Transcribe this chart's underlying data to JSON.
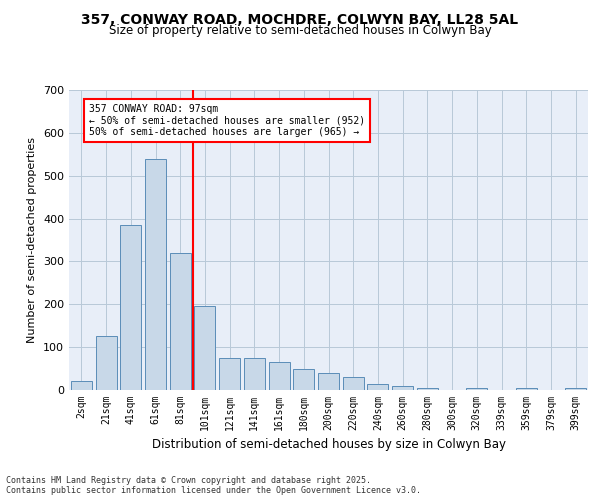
{
  "title1": "357, CONWAY ROAD, MOCHDRE, COLWYN BAY, LL28 5AL",
  "title2": "Size of property relative to semi-detached houses in Colwyn Bay",
  "xlabel": "Distribution of semi-detached houses by size in Colwyn Bay",
  "ylabel": "Number of semi-detached properties",
  "categories": [
    "2sqm",
    "21sqm",
    "41sqm",
    "61sqm",
    "81sqm",
    "101sqm",
    "121sqm",
    "141sqm",
    "161sqm",
    "180sqm",
    "200sqm",
    "220sqm",
    "240sqm",
    "260sqm",
    "280sqm",
    "300sqm",
    "320sqm",
    "339sqm",
    "359sqm",
    "379sqm",
    "399sqm"
  ],
  "values": [
    20,
    125,
    385,
    540,
    320,
    195,
    75,
    75,
    65,
    50,
    40,
    30,
    15,
    10,
    5,
    0,
    5,
    0,
    5,
    0,
    5
  ],
  "bar_color": "#c8d8e8",
  "bar_edge_color": "#5b8db8",
  "vline_x": 4.5,
  "vline_color": "red",
  "annotation_text": "357 CONWAY ROAD: 97sqm\n← 50% of semi-detached houses are smaller (952)\n50% of semi-detached houses are larger (965) →",
  "annotation_box_color": "white",
  "annotation_box_edge": "red",
  "ylim": [
    0,
    700
  ],
  "yticks": [
    0,
    100,
    200,
    300,
    400,
    500,
    600,
    700
  ],
  "footer": "Contains HM Land Registry data © Crown copyright and database right 2025.\nContains public sector information licensed under the Open Government Licence v3.0.",
  "bg_color": "#e8eef8",
  "grid_color": "#b8c8d8"
}
